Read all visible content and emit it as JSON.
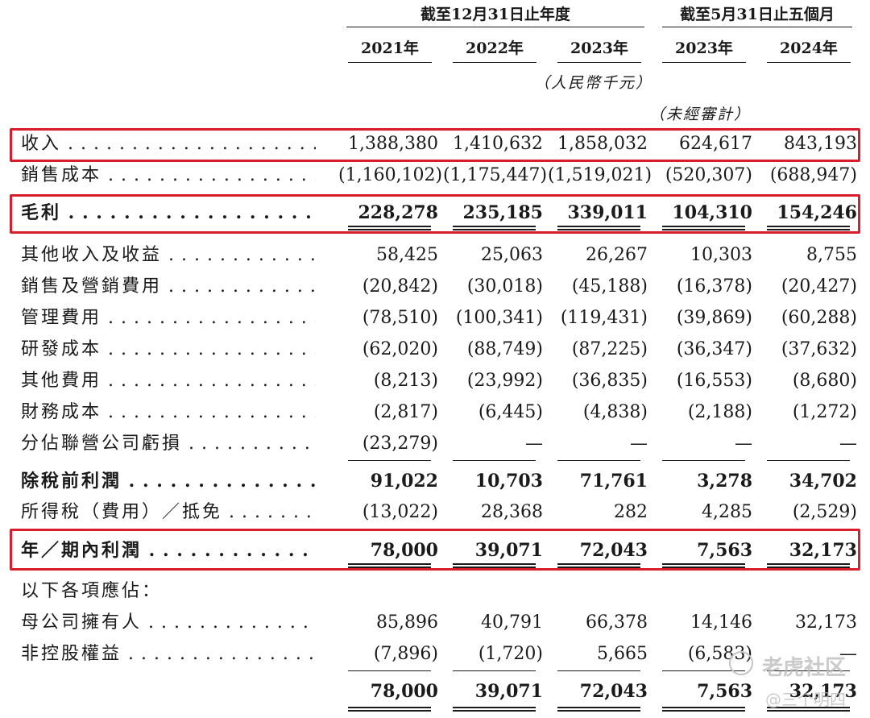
{
  "header": {
    "group1": "截至12月31日止年度",
    "group2": "截至5月31日止五個月",
    "years": [
      "2021年",
      "2022年",
      "2023年",
      "2023年",
      "2024年"
    ],
    "currency_note": "（人民幣千元）",
    "unaudited_note": "（未經審計）"
  },
  "rows": [
    {
      "label": "收入",
      "values": [
        "1,388,380",
        "1,410,632",
        "1,858,032",
        "624,617",
        "843,193"
      ]
    },
    {
      "label": "銷售成本",
      "values": [
        "(1,160,102)",
        "(1,175,447)",
        "(1,519,021)",
        "(520,307)",
        "(688,947)"
      ]
    },
    {
      "label": "毛利",
      "values": [
        "228,278",
        "235,185",
        "339,011",
        "104,310",
        "154,246"
      ]
    },
    {
      "label": "其他收入及收益",
      "values": [
        "58,425",
        "25,063",
        "26,267",
        "10,303",
        "8,755"
      ]
    },
    {
      "label": "銷售及營銷費用",
      "values": [
        "(20,842)",
        "(30,018)",
        "(45,188)",
        "(16,378)",
        "(20,427)"
      ]
    },
    {
      "label": "管理費用",
      "values": [
        "(78,510)",
        "(100,341)",
        "(119,431)",
        "(39,869)",
        "(60,288)"
      ]
    },
    {
      "label": "研發成本",
      "values": [
        "(62,020)",
        "(88,749)",
        "(87,225)",
        "(36,347)",
        "(37,632)"
      ]
    },
    {
      "label": "其他費用",
      "values": [
        "(8,213)",
        "(23,992)",
        "(36,835)",
        "(16,553)",
        "(8,680)"
      ]
    },
    {
      "label": "財務成本",
      "values": [
        "(2,817)",
        "(6,445)",
        "(4,838)",
        "(2,188)",
        "(1,272)"
      ]
    },
    {
      "label": "分佔聯營公司虧損",
      "values": [
        "(23,279)",
        "—",
        "—",
        "—",
        "—"
      ]
    },
    {
      "label": "除稅前利潤",
      "values": [
        "91,022",
        "10,703",
        "71,761",
        "3,278",
        "34,702"
      ]
    },
    {
      "label": "所得稅（費用）／抵免",
      "values": [
        "(13,022)",
        "28,368",
        "282",
        "4,285",
        "(2,529)"
      ]
    },
    {
      "label": "年／期內利潤",
      "values": [
        "78,000",
        "39,071",
        "72,043",
        "7,563",
        "32,173"
      ]
    },
    {
      "label": "以下各項應佔："
    },
    {
      "label": "母公司擁有人",
      "values": [
        "85,896",
        "40,791",
        "66,378",
        "14,146",
        "32,173"
      ]
    },
    {
      "label": "非控股權益",
      "values": [
        "(7,896)",
        "(1,720)",
        "5,665",
        "(6,583)",
        "—"
      ]
    },
    {
      "values": [
        "78,000",
        "39,071",
        "72,043",
        "7,563",
        "32,173"
      ]
    }
  ],
  "watermark": {
    "main": "老虎社区",
    "handle": "@三个明四"
  },
  "highlight_color": "#d81e2c"
}
